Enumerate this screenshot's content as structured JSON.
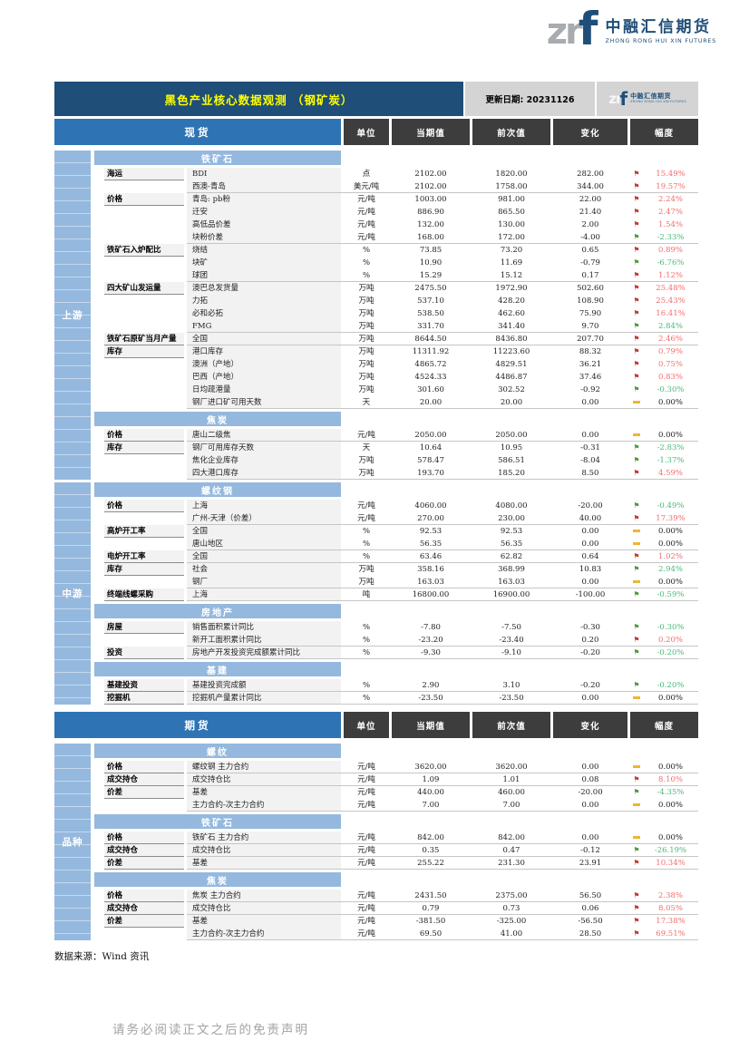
{
  "logo": {
    "zr": "zr",
    "f": "f",
    "name": "中融汇信期货",
    "tagline": "ZHONG RONG HUI XIN FUTURES"
  },
  "header": {
    "title": "黑色产业核心数据观测 （钢矿炭）",
    "update": "更新日期: 20231126"
  },
  "columns": {
    "unit": "单位",
    "current": "当期值",
    "previous": "前次值",
    "change": "变化",
    "range": "幅度"
  },
  "colors": {
    "header_bg": "#1F4E79",
    "title_text": "#FFFF00",
    "table_name_blue": "#2E74B5",
    "section_band_blue": "#95B9DE",
    "column_header_dark": "#3D3D3D",
    "up_red": "#F46C6C",
    "down_green": "#49BB77",
    "flat_amber": "#F0B52F"
  },
  "spot": {
    "name": "现货",
    "groups": [
      {
        "label": "上游",
        "sections": [
          0,
          1
        ]
      },
      {
        "label": "中游",
        "sections": [
          2,
          3,
          4
        ]
      }
    ],
    "sections": [
      {
        "title": "铁矿石",
        "rows": [
          {
            "cat": "海运",
            "label": "BDI",
            "unit": "点",
            "cur": "2102.00",
            "prev": "1820.00",
            "chg": "282.00",
            "dir": "up",
            "pct": "15.49%"
          },
          {
            "cat": "",
            "label": "西澳-青岛",
            "unit": "美元/吨",
            "cur": "2102.00",
            "prev": "1758.00",
            "chg": "344.00",
            "dir": "up",
            "pct": "19.57%",
            "end": true
          },
          {
            "cat": "价格",
            "label": "青岛: pb粉",
            "unit": "元/吨",
            "cur": "1003.00",
            "prev": "981.00",
            "chg": "22.00",
            "dir": "up",
            "pct": "2.24%"
          },
          {
            "cat": "",
            "label": "迁安",
            "unit": "元/吨",
            "cur": "886.90",
            "prev": "865.50",
            "chg": "21.40",
            "dir": "up",
            "pct": "2.47%"
          },
          {
            "cat": "",
            "label": "高低品价差",
            "unit": "元/吨",
            "cur": "132.00",
            "prev": "130.00",
            "chg": "2.00",
            "dir": "up",
            "pct": "1.54%"
          },
          {
            "cat": "",
            "label": "块粉价差",
            "unit": "元/吨",
            "cur": "168.00",
            "prev": "172.00",
            "chg": "-4.00",
            "dir": "down",
            "pct": "-2.33%",
            "end": true
          },
          {
            "cat": "铁矿石入炉配比",
            "label": "烧结",
            "unit": "%",
            "cur": "73.85",
            "prev": "73.20",
            "chg": "0.65",
            "dir": "up",
            "pct": "0.89%"
          },
          {
            "cat": "",
            "label": "块矿",
            "unit": "%",
            "cur": "10.90",
            "prev": "11.69",
            "chg": "-0.79",
            "dir": "down",
            "pct": "-6.76%"
          },
          {
            "cat": "",
            "label": "球团",
            "unit": "%",
            "cur": "15.29",
            "prev": "15.12",
            "chg": "0.17",
            "dir": "up",
            "pct": "1.12%",
            "end": true
          },
          {
            "cat": "四大矿山发运量",
            "label": "澳巴总发货量",
            "unit": "万吨",
            "cur": "2475.50",
            "prev": "1972.90",
            "chg": "502.60",
            "dir": "up",
            "pct": "25.48%"
          },
          {
            "cat": "",
            "label": "力拓",
            "unit": "万吨",
            "cur": "537.10",
            "prev": "428.20",
            "chg": "108.90",
            "dir": "up",
            "pct": "25.43%"
          },
          {
            "cat": "",
            "label": "必和必拓",
            "unit": "万吨",
            "cur": "538.50",
            "prev": "462.60",
            "chg": "75.90",
            "dir": "up",
            "pct": "16.41%"
          },
          {
            "cat": "",
            "label": "FMG",
            "unit": "万吨",
            "cur": "331.70",
            "prev": "341.40",
            "chg": "9.70",
            "dir": "down",
            "pct": "2.84%",
            "end": true
          },
          {
            "cat": "铁矿石原矿当月产量",
            "label": "全国",
            "unit": "万吨",
            "cur": "8644.50",
            "prev": "8436.80",
            "chg": "207.70",
            "dir": "up",
            "pct": "2.46%",
            "end": true
          },
          {
            "cat": "库存",
            "label": "港口库存",
            "unit": "万吨",
            "cur": "11311.92",
            "prev": "11223.60",
            "chg": "88.32",
            "dir": "up",
            "pct": "0.79%"
          },
          {
            "cat": "",
            "label": "澳洲（产地）",
            "unit": "万吨",
            "cur": "4865.72",
            "prev": "4829.51",
            "chg": "36.21",
            "dir": "up",
            "pct": "0.75%"
          },
          {
            "cat": "",
            "label": "巴西（产地）",
            "unit": "万吨",
            "cur": "4524.33",
            "prev": "4486.87",
            "chg": "37.46",
            "dir": "up",
            "pct": "0.83%"
          },
          {
            "cat": "",
            "label": "日均疏港量",
            "unit": "万吨",
            "cur": "301.60",
            "prev": "302.52",
            "chg": "-0.92",
            "dir": "down",
            "pct": "-0.30%"
          },
          {
            "cat": "",
            "label": "钢厂进口矿可用天数",
            "unit": "天",
            "cur": "20.00",
            "prev": "20.00",
            "chg": "0.00",
            "dir": "flat",
            "pct": "0.00%",
            "end": true
          }
        ]
      },
      {
        "title": "焦炭",
        "rows": [
          {
            "cat": "价格",
            "label": "唐山二级焦",
            "unit": "元/吨",
            "cur": "2050.00",
            "prev": "2050.00",
            "chg": "0.00",
            "dir": "flat",
            "pct": "0.00%",
            "end": true
          },
          {
            "cat": "库存",
            "label": "钢厂可用库存天数",
            "unit": "天",
            "cur": "10.64",
            "prev": "10.95",
            "chg": "-0.31",
            "dir": "down",
            "pct": "-2.83%"
          },
          {
            "cat": "",
            "label": "焦化企业库存",
            "unit": "万吨",
            "cur": "578.47",
            "prev": "586.51",
            "chg": "-8.04",
            "dir": "down",
            "pct": "-1.37%"
          },
          {
            "cat": "",
            "label": "四大港口库存",
            "unit": "万吨",
            "cur": "193.70",
            "prev": "185.20",
            "chg": "8.50",
            "dir": "up",
            "pct": "4.59%",
            "end": true
          }
        ]
      },
      {
        "title": "螺纹钢",
        "rows": [
          {
            "cat": "价格",
            "label": "上海",
            "unit": "元/吨",
            "cur": "4060.00",
            "prev": "4080.00",
            "chg": "-20.00",
            "dir": "down",
            "pct": "-0.49%"
          },
          {
            "cat": "",
            "label": "广州-天津（价差）",
            "unit": "元/吨",
            "cur": "270.00",
            "prev": "230.00",
            "chg": "40.00",
            "dir": "up",
            "pct": "17.39%",
            "end": true
          },
          {
            "cat": "高炉开工率",
            "label": "全国",
            "unit": "%",
            "cur": "92.53",
            "prev": "92.53",
            "chg": "0.00",
            "dir": "flat",
            "pct": "0.00%"
          },
          {
            "cat": "",
            "label": "唐山地区",
            "unit": "%",
            "cur": "56.35",
            "prev": "56.35",
            "chg": "0.00",
            "dir": "flat",
            "pct": "0.00%",
            "end": true
          },
          {
            "cat": "电炉开工率",
            "label": "全国",
            "unit": "%",
            "cur": "63.46",
            "prev": "62.82",
            "chg": "0.64",
            "dir": "up",
            "pct": "1.02%",
            "end": true
          },
          {
            "cat": "库存",
            "label": "社会",
            "unit": "万吨",
            "cur": "358.16",
            "prev": "368.99",
            "chg": "10.83",
            "dir": "down",
            "pct": "2.94%"
          },
          {
            "cat": "",
            "label": "钢厂",
            "unit": "万吨",
            "cur": "163.03",
            "prev": "163.03",
            "chg": "0.00",
            "dir": "flat",
            "pct": "0.00%",
            "end": true
          },
          {
            "cat": "终端线螺采购",
            "label": "上海",
            "unit": "吨",
            "cur": "16800.00",
            "prev": "16900.00",
            "chg": "-100.00",
            "dir": "down",
            "pct": "-0.59%",
            "end": true
          }
        ]
      },
      {
        "title": "房地产",
        "rows": [
          {
            "cat": "房屋",
            "label": "销售面积累计同比",
            "unit": "%",
            "cur": "-7.80",
            "prev": "-7.50",
            "chg": "-0.30",
            "dir": "down",
            "pct": "-0.30%"
          },
          {
            "cat": "",
            "label": "新开工面积累计同比",
            "unit": "%",
            "cur": "-23.20",
            "prev": "-23.40",
            "chg": "0.20",
            "dir": "up",
            "pct": "0.20%",
            "end": true
          },
          {
            "cat": "投资",
            "label": "房地产开发投资完成额累计同比",
            "unit": "%",
            "cur": "-9.30",
            "prev": "-9.10",
            "chg": "-0.20",
            "dir": "down",
            "pct": "-0.20%",
            "end": true
          }
        ]
      },
      {
        "title": "基建",
        "rows": [
          {
            "cat": "基建投资",
            "label": "基建投资完成额",
            "unit": "%",
            "cur": "2.90",
            "prev": "3.10",
            "chg": "-0.20",
            "dir": "down",
            "pct": "-0.20%",
            "end": true
          },
          {
            "cat": "挖掘机",
            "label": "挖掘机产量累计同比",
            "unit": "%",
            "cur": "-23.50",
            "prev": "-23.50",
            "chg": "0.00",
            "dir": "flat",
            "pct": "0.00%",
            "end": true
          }
        ]
      }
    ]
  },
  "futures": {
    "name": "期货",
    "groups": [
      {
        "label": "品种",
        "sections": [
          0,
          1,
          2
        ]
      }
    ],
    "sections": [
      {
        "title": "螺纹",
        "rows": [
          {
            "cat": "价格",
            "label": "螺纹钢 主力合约",
            "unit": "元/吨",
            "cur": "3620.00",
            "prev": "3620.00",
            "chg": "0.00",
            "dir": "flat",
            "pct": "0.00%",
            "end": true
          },
          {
            "cat": "成交持仓",
            "label": "成交持仓比",
            "unit": "元/吨",
            "cur": "1.09",
            "prev": "1.01",
            "chg": "0.08",
            "dir": "up",
            "pct": "8.10%",
            "end": true
          },
          {
            "cat": "价差",
            "label": "基差",
            "unit": "元/吨",
            "cur": "440.00",
            "prev": "460.00",
            "chg": "-20.00",
            "dir": "down",
            "pct": "-4.35%"
          },
          {
            "cat": "",
            "label": "主力合约-次主力合约",
            "unit": "元/吨",
            "cur": "7.00",
            "prev": "7.00",
            "chg": "0.00",
            "dir": "flat",
            "pct": "0.00%",
            "end": true
          }
        ]
      },
      {
        "title": "铁矿石",
        "rows": [
          {
            "cat": "价格",
            "label": "铁矿石 主力合约",
            "unit": "元/吨",
            "cur": "842.00",
            "prev": "842.00",
            "chg": "0.00",
            "dir": "flat",
            "pct": "0.00%",
            "end": true
          },
          {
            "cat": "成交持仓",
            "label": "成交持仓比",
            "unit": "元/吨",
            "cur": "0.35",
            "prev": "0.47",
            "chg": "-0.12",
            "dir": "down",
            "pct": "-26.19%",
            "end": true
          },
          {
            "cat": "价差",
            "label": "基差",
            "unit": "元/吨",
            "cur": "255.22",
            "prev": "231.30",
            "chg": "23.91",
            "dir": "up",
            "pct": "10.34%",
            "end": true
          }
        ]
      },
      {
        "title": "焦炭",
        "rows": [
          {
            "cat": "价格",
            "label": "焦炭 主力合约",
            "unit": "元/吨",
            "cur": "2431.50",
            "prev": "2375.00",
            "chg": "56.50",
            "dir": "up",
            "pct": "2.38%",
            "end": true
          },
          {
            "cat": "成交持仓",
            "label": "成交持仓比",
            "unit": "元/吨",
            "cur": "0.79",
            "prev": "0.73",
            "chg": "0.06",
            "dir": "up",
            "pct": "8.05%",
            "end": true
          },
          {
            "cat": "价差",
            "label": "基差",
            "unit": "元/吨",
            "cur": "-381.50",
            "prev": "-325.00",
            "chg": "-56.50",
            "dir": "up",
            "pct": "17.38%"
          },
          {
            "cat": "",
            "label": "主力合约-次主力合约",
            "unit": "元/吨",
            "cur": "69.50",
            "prev": "41.00",
            "chg": "28.50",
            "dir": "up",
            "pct": "69.51%",
            "end": true
          }
        ]
      }
    ]
  },
  "footer": {
    "source": "数据来源：Wind 资讯",
    "disclaimer": "请务必阅读正文之后的免责声明"
  }
}
